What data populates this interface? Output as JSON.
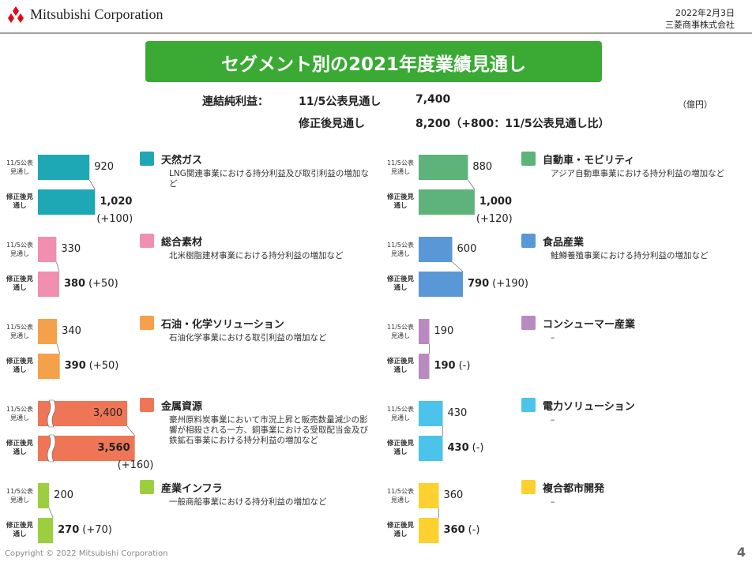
{
  "header": {
    "company": "Mitsubishi Corporation",
    "date": "2022年2月3日",
    "company_jp": "三菱商事株式会社"
  },
  "title": "セグメント別の2021年度業績見通し",
  "summary": {
    "label": "連結純利益：",
    "rows": [
      [
        "11/5公表見通し",
        "7,400"
      ],
      [
        "修正後見通し",
        "8,200（+800：11/5公表見通し比）"
      ]
    ]
  },
  "unit": "（億円）",
  "chart_data": [
    {
      "type": "bar",
      "orientation": "horizontal",
      "title": "天然ガス",
      "description": "LNG関連事業における持分利益及び取引利益の増加など",
      "categories": [
        "11/5公表見通し",
        "修正後見通し"
      ],
      "values": [
        920,
        1020
      ],
      "value_labels": [
        "920",
        "1,020"
      ],
      "change": "(+100)",
      "color": "#1ea8b5",
      "xlim": [
        0,
        1100
      ]
    },
    {
      "type": "bar",
      "orientation": "horizontal",
      "title": "総合素材",
      "description": "北米樹脂建材事業における持分利益の増加など",
      "categories": [
        "11/5公表見通し",
        "修正後見通し"
      ],
      "values": [
        330,
        380
      ],
      "value_labels": [
        "330",
        "380"
      ],
      "change": "(+50)",
      "color": "#f08fb0",
      "xlim": [
        0,
        1100
      ]
    },
    {
      "type": "bar",
      "orientation": "horizontal",
      "title": "石油・化学ソリューション",
      "description": "石油化学事業における取引利益の増加など",
      "categories": [
        "11/5公表見通し",
        "修正後見通し"
      ],
      "values": [
        340,
        390
      ],
      "value_labels": [
        "340",
        "390"
      ],
      "change": "(+50)",
      "color": "#f5a04a",
      "xlim": [
        0,
        1100
      ]
    },
    {
      "type": "bar",
      "orientation": "horizontal",
      "title": "金属資源",
      "description": "豪州原料炭事業において市況上昇と販売数量減少の影響が相殺される一方、銅事業における受取配当金及び鉄鉱石事業における持分利益の増加など",
      "categories": [
        "11/5公表見通し",
        "修正後見通し"
      ],
      "values": [
        3400,
        3560
      ],
      "value_labels": [
        "3,400",
        "3,560"
      ],
      "change": "(+160)",
      "color": "#ee7656",
      "xlim": [
        1500,
        3600
      ],
      "axis_break": true
    },
    {
      "type": "bar",
      "orientation": "horizontal",
      "title": "産業インフラ",
      "description": "一般商船事業における持分利益の増加など",
      "categories": [
        "11/5公表見通し",
        "修正後見通し"
      ],
      "values": [
        200,
        270
      ],
      "value_labels": [
        "200",
        "270"
      ],
      "change": "(+70)",
      "color": "#9ccf3f",
      "xlim": [
        0,
        1100
      ]
    },
    {
      "type": "bar",
      "orientation": "horizontal",
      "title": "自動車・モビリティ",
      "description": "アジア自動車事業における持分利益の増加など",
      "categories": [
        "11/5公表見通し",
        "修正後見通し"
      ],
      "values": [
        880,
        1000
      ],
      "value_labels": [
        "880",
        "1,000"
      ],
      "change": "(+120)",
      "color": "#5db37a",
      "xlim": [
        0,
        1100
      ]
    },
    {
      "type": "bar",
      "orientation": "horizontal",
      "title": "食品産業",
      "description": "鮭鱒養殖事業における持分利益の増加など",
      "categories": [
        "11/5公表見通し",
        "修正後見通し"
      ],
      "values": [
        600,
        790
      ],
      "value_labels": [
        "600",
        "790"
      ],
      "change": "(+190)",
      "color": "#5a97d6",
      "xlim": [
        0,
        1100
      ]
    },
    {
      "type": "bar",
      "orientation": "horizontal",
      "title": "コンシューマー産業",
      "description": "–",
      "categories": [
        "11/5公表見通し",
        "修正後見通し"
      ],
      "values": [
        190,
        190
      ],
      "value_labels": [
        "190",
        "190"
      ],
      "change": "(-)",
      "color": "#b98ac2",
      "xlim": [
        0,
        1100
      ]
    },
    {
      "type": "bar",
      "orientation": "horizontal",
      "title": "電力ソリューション",
      "description": "–",
      "categories": [
        "11/5公表見通し",
        "修正後見通し"
      ],
      "values": [
        430,
        430
      ],
      "value_labels": [
        "430",
        "430"
      ],
      "change": "(-)",
      "color": "#4cc3ea",
      "xlim": [
        0,
        1100
      ]
    },
    {
      "type": "bar",
      "orientation": "horizontal",
      "title": "複合都市開発",
      "description": "–",
      "categories": [
        "11/5公表見通し",
        "修正後見通し"
      ],
      "values": [
        360,
        360
      ],
      "value_labels": [
        "360",
        "360"
      ],
      "change": "(-)",
      "color": "#fcd130",
      "xlim": [
        0,
        1100
      ]
    }
  ],
  "footer": {
    "copyright": "Copyright © 2022 Mitsubishi Corporation",
    "page": "4"
  }
}
